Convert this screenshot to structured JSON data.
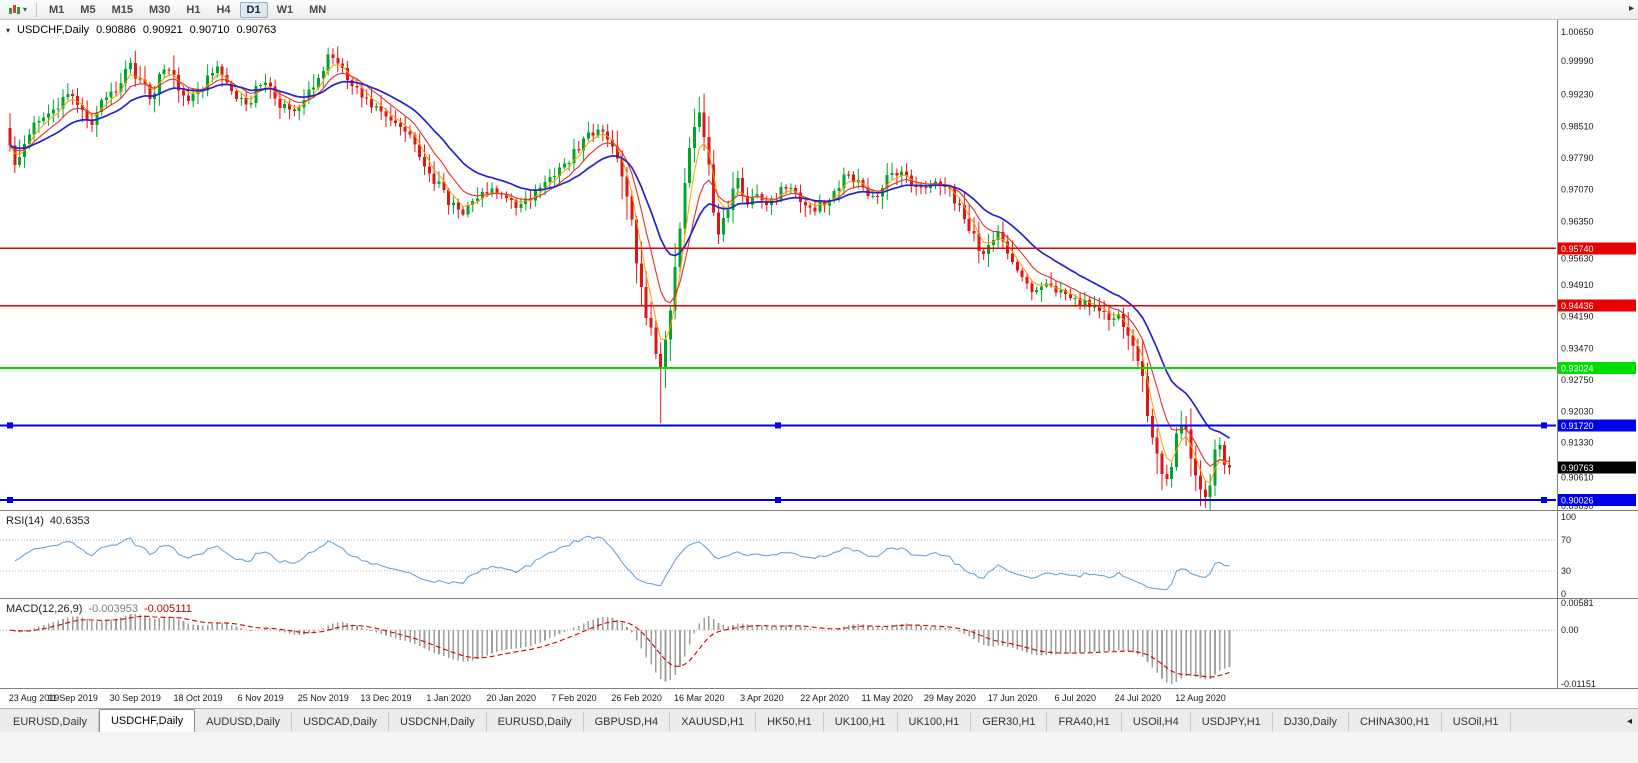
{
  "toolbar": {
    "timeframes": [
      "M1",
      "M5",
      "M15",
      "M30",
      "H1",
      "H4",
      "D1",
      "W1",
      "MN"
    ],
    "active_timeframe": "D1"
  },
  "icons": {
    "chart_menu": "▾",
    "chart_type_caret": "▾",
    "toolbar_overflow": "▸",
    "tab_scroll": "◂"
  },
  "chart": {
    "symbol": "USDCHF,Daily",
    "ohlc": {
      "open": "0.90886",
      "high": "0.90921",
      "low": "0.90710",
      "close": "0.90763"
    }
  },
  "colors": {
    "candle_up": "#00A62B",
    "candle_down": "#DF1616",
    "current_price_box": "#000000",
    "axis_text": "#1a1a1a",
    "separator": "#808080",
    "level_dotted": "#b0b0b0"
  },
  "chart_data": {
    "type": "candlestick",
    "symbol": "USDCHF",
    "timeframe": "Daily",
    "candle_count": 254,
    "seed": 20200820,
    "price_range": {
      "max": 1.0065,
      "min": 0.8989
    },
    "y_axis_ticks": [
      "1.00650",
      "0.99990",
      "0.99230",
      "0.98510",
      "0.97790",
      "0.97070",
      "0.96350",
      "0.95630",
      "0.94910",
      "0.94190",
      "0.93470",
      "0.92750",
      "0.92030",
      "0.91330",
      "0.90610",
      "0.89890"
    ],
    "x_axis_dates": [
      "23 Aug 2019",
      "11 Sep 2019",
      "30 Sep 2019",
      "18 Oct 2019",
      "6 Nov 2019",
      "25 Nov 2019",
      "13 Dec 2019",
      "1 Jan 2020",
      "20 Jan 2020",
      "7 Feb 2020",
      "26 Feb 2020",
      "16 Mar 2020",
      "3 Apr 2020",
      "22 Apr 2020",
      "11 May 2020",
      "29 May 2020",
      "17 Jun 2020",
      "6 Jul 2020",
      "24 Jul 2020",
      "12 Aug 2020"
    ],
    "date_step": 13,
    "price_anchors": [
      [
        0,
        0.98
      ],
      [
        1,
        0.9755
      ],
      [
        2,
        0.979
      ],
      [
        3,
        0.982
      ],
      [
        5,
        0.985
      ],
      [
        7,
        0.9868
      ],
      [
        9,
        0.9885
      ],
      [
        11,
        0.9907
      ],
      [
        13,
        0.9928
      ],
      [
        15,
        0.988
      ],
      [
        17,
        0.9858
      ],
      [
        19,
        0.99
      ],
      [
        21,
        0.9928
      ],
      [
        23,
        0.995
      ],
      [
        25,
        0.9988
      ],
      [
        27,
        0.9955
      ],
      [
        29,
        0.992
      ],
      [
        31,
        0.9958
      ],
      [
        33,
        0.9985
      ],
      [
        35,
        0.9938
      ],
      [
        37,
        0.9905
      ],
      [
        39,
        0.9928
      ],
      [
        41,
        0.9962
      ],
      [
        43,
        0.998
      ],
      [
        45,
        0.9948
      ],
      [
        47,
        0.9918
      ],
      [
        49,
        0.9898
      ],
      [
        51,
        0.9932
      ],
      [
        53,
        0.9945
      ],
      [
        55,
        0.9915
      ],
      [
        57,
        0.9892
      ],
      [
        59,
        0.9882
      ],
      [
        61,
        0.9912
      ],
      [
        63,
        0.9942
      ],
      [
        65,
        0.9978
      ],
      [
        66,
        1.0002
      ],
      [
        67,
        1.0015
      ],
      [
        68,
        0.9988
      ],
      [
        70,
        0.9962
      ],
      [
        72,
        0.9932
      ],
      [
        74,
        0.9912
      ],
      [
        76,
        0.9892
      ],
      [
        78,
        0.9872
      ],
      [
        80,
        0.9852
      ],
      [
        82,
        0.9838
      ],
      [
        84,
        0.9808
      ],
      [
        86,
        0.9772
      ],
      [
        88,
        0.9732
      ],
      [
        90,
        0.9698
      ],
      [
        92,
        0.9668
      ],
      [
        94,
        0.9658
      ],
      [
        96,
        0.9678
      ],
      [
        98,
        0.9698
      ],
      [
        100,
        0.971
      ],
      [
        102,
        0.9694
      ],
      [
        104,
        0.9678
      ],
      [
        106,
        0.967
      ],
      [
        108,
        0.9688
      ],
      [
        110,
        0.9703
      ],
      [
        112,
        0.9728
      ],
      [
        114,
        0.9758
      ],
      [
        116,
        0.9778
      ],
      [
        118,
        0.9802
      ],
      [
        120,
        0.9828
      ],
      [
        122,
        0.9843
      ],
      [
        124,
        0.9828
      ],
      [
        126,
        0.9792
      ],
      [
        127,
        0.9745
      ],
      [
        128,
        0.969
      ],
      [
        129,
        0.9628
      ],
      [
        130,
        0.9558
      ],
      [
        131,
        0.949
      ],
      [
        132,
        0.9432
      ],
      [
        133,
        0.939
      ],
      [
        134,
        0.934
      ],
      [
        135,
        0.9292
      ],
      [
        136,
        0.9372
      ],
      [
        137,
        0.9445
      ],
      [
        138,
        0.9525
      ],
      [
        139,
        0.9612
      ],
      [
        140,
        0.9702
      ],
      [
        141,
        0.9792
      ],
      [
        142,
        0.9862
      ],
      [
        143,
        0.9888
      ],
      [
        144,
        0.982
      ],
      [
        145,
        0.9748
      ],
      [
        146,
        0.9675
      ],
      [
        147,
        0.9612
      ],
      [
        148,
        0.9642
      ],
      [
        149,
        0.9668
      ],
      [
        150,
        0.9702
      ],
      [
        151,
        0.9728
      ],
      [
        152,
        0.97
      ],
      [
        153,
        0.968
      ],
      [
        155,
        0.9702
      ],
      [
        157,
        0.9668
      ],
      [
        159,
        0.969
      ],
      [
        161,
        0.9715
      ],
      [
        163,
        0.9698
      ],
      [
        165,
        0.9678
      ],
      [
        167,
        0.9655
      ],
      [
        169,
        0.9682
      ],
      [
        171,
        0.9705
      ],
      [
        173,
        0.9738
      ],
      [
        175,
        0.9732
      ],
      [
        177,
        0.9712
      ],
      [
        179,
        0.9692
      ],
      [
        181,
        0.9713
      ],
      [
        183,
        0.9752
      ],
      [
        185,
        0.9742
      ],
      [
        187,
        0.9722
      ],
      [
        189,
        0.9712
      ],
      [
        191,
        0.9722
      ],
      [
        193,
        0.9714
      ],
      [
        195,
        0.97
      ],
      [
        197,
        0.9672
      ],
      [
        199,
        0.962
      ],
      [
        201,
        0.9578
      ],
      [
        202,
        0.956
      ],
      [
        203,
        0.9585
      ],
      [
        205,
        0.9618
      ],
      [
        207,
        0.9575
      ],
      [
        209,
        0.9535
      ],
      [
        211,
        0.9495
      ],
      [
        213,
        0.9472
      ],
      [
        215,
        0.9498
      ],
      [
        217,
        0.9482
      ],
      [
        219,
        0.9468
      ],
      [
        221,
        0.9455
      ],
      [
        223,
        0.9448
      ],
      [
        225,
        0.9438
      ],
      [
        227,
        0.9428
      ],
      [
        229,
        0.9412
      ],
      [
        230,
        0.9418
      ],
      [
        231,
        0.9405
      ],
      [
        232,
        0.938
      ],
      [
        233,
        0.9352
      ],
      [
        234,
        0.931
      ],
      [
        235,
        0.9262
      ],
      [
        236,
        0.9215
      ],
      [
        237,
        0.9165
      ],
      [
        238,
        0.9115
      ],
      [
        239,
        0.9078
      ],
      [
        240,
        0.9045
      ],
      [
        241,
        0.909
      ],
      [
        242,
        0.914
      ],
      [
        243,
        0.918
      ],
      [
        244,
        0.915
      ],
      [
        245,
        0.9105
      ],
      [
        246,
        0.9062
      ],
      [
        247,
        0.903
      ],
      [
        248,
        0.9
      ],
      [
        249,
        0.9048
      ],
      [
        250,
        0.9105
      ],
      [
        251,
        0.9125
      ],
      [
        252,
        0.9082
      ],
      [
        253,
        0.90763
      ]
    ],
    "wick_overrides": {
      "67": {
        "high": 1.0028
      },
      "135": {
        "low": 0.9177
      },
      "143": {
        "high": 0.9918
      },
      "240": {
        "low": 0.9035
      },
      "243": {
        "high": 0.9205
      },
      "248": {
        "low": 0.8985
      }
    },
    "moving_averages": [
      {
        "period": 4,
        "color": "#FF9D00",
        "width": 1
      },
      {
        "period": 9,
        "color": "#E03030",
        "width": 1.1
      },
      {
        "period": 20,
        "color": "#2424C8",
        "width": 1.7
      }
    ],
    "hlines": [
      {
        "price": 0.9574,
        "label": "0.95740",
        "color": "#E60000",
        "width": 1.2,
        "selected": false
      },
      {
        "price": 0.94436,
        "label": "0.94436",
        "color": "#E60000",
        "width": 1.2,
        "selected": false
      },
      {
        "price": 0.93024,
        "label": "0.93024",
        "color": "#00DD00",
        "width": 1.8,
        "selected": false
      },
      {
        "price": 0.9172,
        "label": "0.91720",
        "color": "#0000F0",
        "width": 1.8,
        "selected": true
      },
      {
        "price": 0.90026,
        "label": "0.90026",
        "color": "#0000F0",
        "width": 1.8,
        "selected": true
      }
    ],
    "current_price": {
      "value": 0.90763,
      "label": "0.90763"
    },
    "rsi": {
      "label": "RSI(14)",
      "value": "40.6353",
      "period": 14,
      "levels": [
        70,
        30
      ],
      "axis_labels": [
        "100",
        "70",
        "30",
        "0"
      ],
      "color": "#5E9CD3"
    },
    "macd": {
      "label": "MACD(12,26,9)",
      "value_macd": "-0.003953",
      "value_signal": "-0.005111",
      "fast": 12,
      "slow": 26,
      "signal": 9,
      "scale_max": 0.00581,
      "scale_min": -0.01151,
      "axis_labels": [
        {
          "label": "0.00581",
          "value": 0.00581
        },
        {
          "label": "0.00",
          "value": 0
        },
        {
          "label": "-0.01151",
          "value": -0.01151
        }
      ],
      "hist_color": "#9e9e9e",
      "signal_color": "#D00000"
    }
  },
  "tabs": {
    "items": [
      "EURUSD,Daily",
      "USDCHF,Daily",
      "AUDUSD,Daily",
      "USDCAD,Daily",
      "USDCNH,Daily",
      "EURUSD,Daily",
      "GBPUSD,H4",
      "XAUUSD,H1",
      "HK50,H1",
      "UK100,H1",
      "UK100,H1",
      "GER30,H1",
      "FRA40,H1",
      "USOil,H4",
      "USDJPY,H1",
      "DJ30,Daily",
      "CHINA300,H1",
      "USOil,H1"
    ],
    "active_index": 1
  }
}
